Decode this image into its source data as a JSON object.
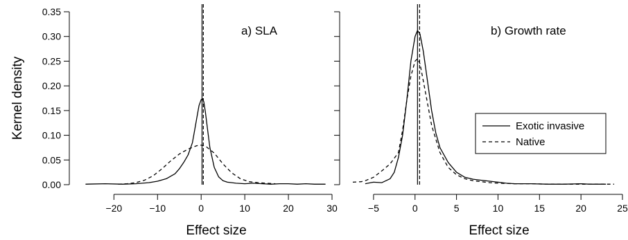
{
  "figure": {
    "ylabel": "Kernel density",
    "legend": {
      "placement": "right-middle of panel b",
      "entries": [
        {
          "label": "Exotic invasive",
          "style": "solid"
        },
        {
          "label": "Native",
          "style": "dashed"
        }
      ]
    }
  },
  "chart_data": [
    {
      "type": "line",
      "panel_label": "a) SLA",
      "xlabel": "Effect size",
      "ylabel": "Kernel density",
      "xlim": [
        -28,
        30
      ],
      "ylim": [
        0,
        0.35
      ],
      "xticks": [
        -20,
        -10,
        0,
        10,
        20,
        30
      ],
      "yticks": [
        0.0,
        0.05,
        0.1,
        0.15,
        0.2,
        0.25,
        0.3,
        0.35
      ],
      "ytick_labels": [
        "0.00",
        "0.05",
        "0.10",
        "0.15",
        "0.20",
        "0.25",
        "0.30",
        "0.35"
      ],
      "grid": false,
      "vlines": [
        {
          "x": 0.2,
          "style": "solid"
        },
        {
          "x": 0.5,
          "style": "dashed"
        }
      ],
      "series": [
        {
          "name": "Exotic invasive",
          "style": "solid",
          "x": [
            -26.5,
            -22,
            -18,
            -15,
            -12,
            -10,
            -8,
            -6,
            -5,
            -4,
            -3,
            -2,
            -1.5,
            -1,
            -0.5,
            0,
            0.3,
            0.6,
            1,
            1.5,
            2,
            3,
            4,
            5,
            6,
            8,
            10,
            12,
            14,
            16,
            18,
            20,
            22,
            24,
            26,
            28.5
          ],
          "y": [
            0.001,
            0.002,
            0.001,
            0.002,
            0.004,
            0.007,
            0.012,
            0.022,
            0.032,
            0.045,
            0.06,
            0.085,
            0.11,
            0.135,
            0.16,
            0.172,
            0.174,
            0.168,
            0.145,
            0.11,
            0.075,
            0.035,
            0.016,
            0.008,
            0.005,
            0.003,
            0.002,
            0.003,
            0.002,
            0.001,
            0.002,
            0.002,
            0.001,
            0.002,
            0.001,
            0.001
          ]
        },
        {
          "name": "Native",
          "style": "dashed",
          "x": [
            -19,
            -17,
            -15,
            -13,
            -11,
            -9,
            -7,
            -5,
            -3,
            -1,
            0,
            1,
            3,
            5,
            7,
            9,
            11,
            13,
            15,
            17
          ],
          "y": [
            0.001,
            0.002,
            0.004,
            0.009,
            0.018,
            0.032,
            0.048,
            0.062,
            0.072,
            0.079,
            0.08,
            0.078,
            0.064,
            0.042,
            0.024,
            0.012,
            0.006,
            0.004,
            0.003,
            0.002
          ]
        }
      ]
    },
    {
      "type": "line",
      "panel_label": "b) Growth rate",
      "xlabel": "Effect size",
      "ylabel": "",
      "xlim": [
        -8,
        25
      ],
      "ylim": [
        0,
        0.35
      ],
      "xticks": [
        -5,
        0,
        5,
        10,
        15,
        20,
        25
      ],
      "grid": false,
      "vlines": [
        {
          "x": 0.3,
          "style": "solid"
        },
        {
          "x": 0.55,
          "style": "dashed"
        }
      ],
      "series": [
        {
          "name": "Exotic invasive",
          "style": "solid",
          "x": [
            -6,
            -5,
            -4,
            -3,
            -2.5,
            -2,
            -1.5,
            -1,
            -0.5,
            0,
            0.3,
            0.6,
            1,
            1.5,
            2,
            2.5,
            3,
            4,
            5,
            6,
            7,
            8,
            9,
            10,
            11,
            12,
            14,
            16,
            18,
            20,
            21,
            22,
            23
          ],
          "y": [
            0.002,
            0.005,
            0.004,
            0.012,
            0.025,
            0.055,
            0.1,
            0.17,
            0.25,
            0.3,
            0.312,
            0.305,
            0.27,
            0.21,
            0.15,
            0.105,
            0.075,
            0.045,
            0.025,
            0.015,
            0.011,
            0.009,
            0.007,
            0.005,
            0.003,
            0.002,
            0.002,
            0.001,
            0.001,
            0.002,
            0.001,
            0.001,
            0.001
          ]
        },
        {
          "name": "Native",
          "style": "dashed",
          "x": [
            -7.5,
            -6.5,
            -6,
            -5,
            -4,
            -3,
            -2,
            -1.5,
            -1,
            -0.5,
            0,
            0.3,
            0.6,
            1,
            1.5,
            2,
            3,
            4,
            5,
            6,
            7,
            8,
            9,
            10,
            12,
            14,
            16,
            18,
            20,
            22,
            24
          ],
          "y": [
            0.005,
            0.006,
            0.008,
            0.015,
            0.028,
            0.042,
            0.065,
            0.11,
            0.17,
            0.22,
            0.25,
            0.255,
            0.245,
            0.21,
            0.165,
            0.12,
            0.065,
            0.035,
            0.02,
            0.012,
            0.008,
            0.006,
            0.004,
            0.003,
            0.002,
            0.002,
            0.001,
            0.001,
            0.001,
            0.001,
            0.001
          ]
        }
      ]
    }
  ]
}
